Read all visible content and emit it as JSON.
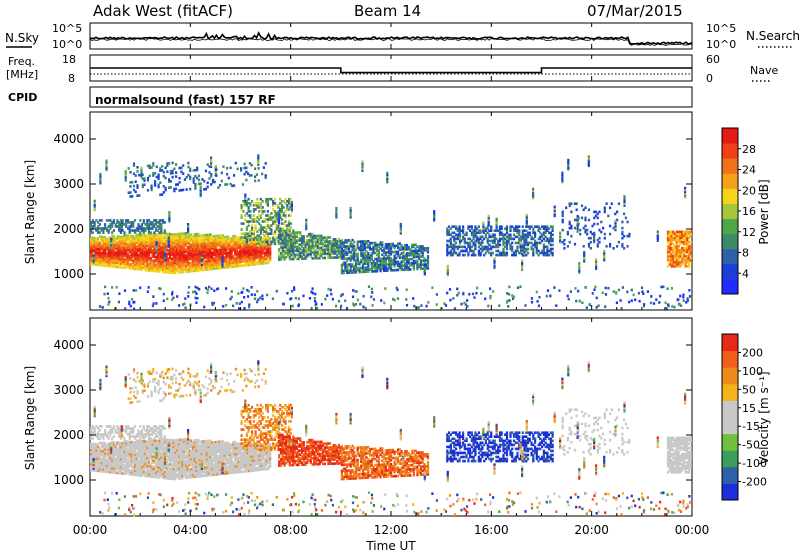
{
  "header": {
    "station": "Adak West (fitACF)",
    "beam": "Beam 14",
    "date": "07/Mar/2015"
  },
  "colors": {
    "power": [
      "#1f2bff",
      "#1a3fd8",
      "#2f5fa8",
      "#3c8a6a",
      "#52a64a",
      "#a6c63b",
      "#f6d31c",
      "#f5a21a",
      "#f0701c",
      "#f04018",
      "#e81a14"
    ],
    "velocity": [
      "#1a2fd8",
      "#2f5fa8",
      "#3c9e5a",
      "#70c040",
      "#c8c8c8",
      "#c8c8c8",
      "#f4b21c",
      "#f08a1c",
      "#f0601a",
      "#e82818"
    ]
  },
  "chart_data": [
    {
      "type": "line",
      "name": "top-strip",
      "left_label": "N.Sky",
      "right_label": "N.Search",
      "left_ticks": [
        "10^5",
        "10^0"
      ],
      "right_ticks": [
        "10^5",
        "10^0"
      ]
    },
    {
      "type": "line",
      "name": "freq-strip",
      "left_label_line1": "Freq.",
      "left_label_line2": "[MHz]",
      "right_label": "Nave",
      "left_ticks": [
        "18",
        "8"
      ],
      "right_ticks": [
        "60",
        "0"
      ],
      "freq_steps": [
        {
          "from": 0,
          "to": 10.0,
          "value": 13.0
        },
        {
          "from": 10.0,
          "to": 18.0,
          "value": 10.5
        },
        {
          "from": 18.0,
          "to": 24.0,
          "value": 13.0
        }
      ],
      "ylim": [
        6,
        20
      ]
    },
    {
      "type": "table",
      "name": "cpid-strip",
      "label": "CPID",
      "text": "normalsound (fast) 157 RF"
    },
    {
      "type": "heatmap",
      "name": "power-panel",
      "ylabel": "Slant Range [km]",
      "yticks": [
        1000,
        2000,
        3000,
        4000
      ],
      "ylim": [
        200,
        4600
      ],
      "xlim": [
        0,
        24
      ],
      "colorbar_label": "Power [dB]",
      "colorbar_ticks": [
        "28",
        "24",
        "20",
        "16",
        "12",
        "8",
        "4"
      ]
    },
    {
      "type": "heatmap",
      "name": "velocity-panel",
      "ylabel": "Slant Range [km]",
      "yticks": [
        1000,
        2000,
        3000,
        4000
      ],
      "ylim": [
        200,
        4600
      ],
      "xlim": [
        0,
        24
      ],
      "colorbar_label": "Velocity [m s⁻¹]",
      "colorbar_ticks": [
        "200",
        "100",
        "50",
        "15",
        "-15",
        "-50",
        "-100",
        "-200"
      ]
    }
  ],
  "xaxis": {
    "label": "Time UT",
    "ticks": [
      "00:00",
      "04:00",
      "08:00",
      "12:00",
      "16:00",
      "20:00",
      "00:00"
    ]
  }
}
